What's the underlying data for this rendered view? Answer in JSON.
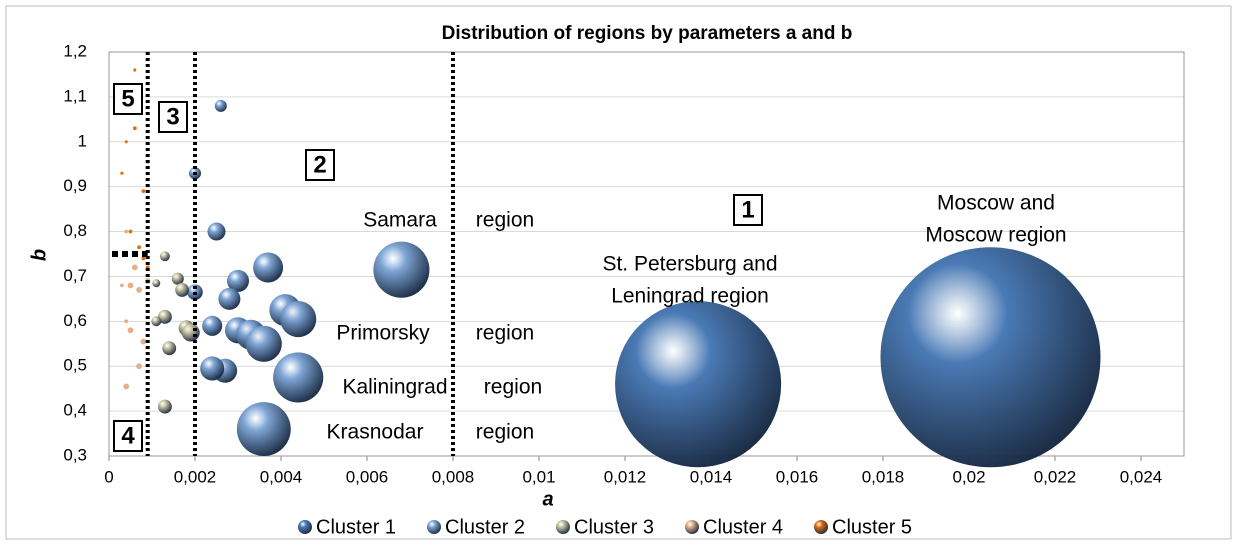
{
  "chart_data": {
    "type": "bubble",
    "title": "Distribution of regions by parameters a and b",
    "xlabel": "a",
    "ylabel": "b",
    "xlim": [
      0,
      0.025
    ],
    "xticks": [
      0,
      {
        "value": 0.002,
        "label": "0,002"
      },
      {
        "value": 0.004,
        "label": "0,004"
      },
      {
        "value": 0.006,
        "label": "0,006"
      },
      {
        "value": 0.008,
        "label": "0,008"
      },
      {
        "value": 0.01,
        "label": "0,01"
      },
      {
        "value": 0.012,
        "label": "0,012"
      },
      {
        "value": 0.014,
        "label": "0,014"
      },
      {
        "value": 0.016,
        "label": "0,016"
      },
      {
        "value": 0.018,
        "label": "0,018"
      },
      {
        "value": 0.02,
        "label": "0,02"
      },
      {
        "value": 0.022,
        "label": "0,022"
      },
      {
        "value": 0.024,
        "label": "0,024"
      }
    ],
    "ylim": [
      0.3,
      1.2
    ],
    "yticks": [
      {
        "value": 0.3,
        "label": "0,3"
      },
      {
        "value": 0.4,
        "label": "0,4"
      },
      {
        "value": 0.5,
        "label": "0,5"
      },
      {
        "value": 0.6,
        "label": "0,6"
      },
      {
        "value": 0.7,
        "label": "0,7"
      },
      {
        "value": 0.8,
        "label": "0,8"
      },
      {
        "value": 0.9,
        "label": "0,9"
      },
      1,
      {
        "value": 1.1,
        "label": "1,1"
      },
      {
        "value": 1.2,
        "label": "1,2"
      }
    ],
    "grid": true,
    "vlines": [
      0.0009,
      0.002,
      0.008
    ],
    "hline": 0.75,
    "series": [
      {
        "name": "Cluster 1",
        "color": "#4a7ab5",
        "x": [
          0.0205,
          0.0137
        ],
        "values": [
          0.52,
          0.46
        ],
        "sizes": [
          100,
          57
        ]
      },
      {
        "name": "Cluster 2",
        "color": "#7fa6d6",
        "x": [
          0.0068,
          0.0026,
          0.002,
          0.0025,
          0.0037,
          0.003,
          0.002,
          0.0028,
          0.0041,
          0.0044,
          0.0024,
          0.003,
          0.0033,
          0.0036,
          0.0027,
          0.0024,
          0.0044,
          0.0036
        ],
        "values": [
          0.715,
          1.08,
          0.93,
          0.8,
          0.72,
          0.69,
          0.665,
          0.65,
          0.625,
          0.605,
          0.59,
          0.58,
          0.57,
          0.55,
          0.49,
          0.495,
          0.475,
          0.36
        ],
        "sizes": [
          6.5,
          0.3,
          0.3,
          0.67,
          1.86,
          1,
          0.5,
          1,
          2.1,
          2.7,
          0.83,
          1.4,
          1.86,
          2.7,
          1.2,
          1.2,
          5.2,
          6
        ]
      },
      {
        "name": "Cluster 3",
        "color": "#c9c4a2",
        "x": [
          0.0013,
          0.0016,
          0.0017,
          0.0011,
          0.0009,
          0.0013,
          0.0018,
          0.0019,
          0.0011,
          0.0014,
          0.0013,
          0.0009
        ],
        "values": [
          0.745,
          0.695,
          0.67,
          0.685,
          0.69,
          0.61,
          0.585,
          0.575,
          0.6,
          0.54,
          0.41,
          0.955
        ],
        "sizes": [
          0.2,
          0.3,
          0.4,
          0.13,
          0.07,
          0.4,
          0.5,
          0.67,
          0.2,
          0.4,
          0.4,
          0.03
        ]
      },
      {
        "name": "Cluster 4",
        "color": "#e2b08a",
        "x": [
          0.0004,
          0.0006,
          0.0005,
          0.0007,
          0.0004,
          0.0005,
          0.0008,
          0.0007,
          0.0004,
          0.0003
        ],
        "values": [
          0.8,
          0.72,
          0.68,
          0.67,
          0.6,
          0.58,
          0.555,
          0.5,
          0.455,
          0.68
        ],
        "sizes": [
          0.03,
          0.07,
          0.07,
          0.07,
          0.03,
          0.07,
          0.07,
          0.07,
          0.07,
          0.03
        ]
      },
      {
        "name": "Cluster 5",
        "color": "#e46c0a",
        "x": [
          0.0006,
          0.0006,
          0.0004,
          0.0003,
          0.0008,
          0.0005,
          0.0007,
          0.0008,
          0.0009
        ],
        "values": [
          1.16,
          1.03,
          1.0,
          0.93,
          0.89,
          0.8,
          0.765,
          0.74,
          0.72
        ],
        "sizes": [
          0.02,
          0.03,
          0.02,
          0.02,
          0.03,
          0.03,
          0.03,
          0.03,
          0.03
        ]
      }
    ],
    "annotations": [
      "Samara",
      "region",
      "Primorsky",
      "region",
      "Kaliningrad",
      "region",
      "Krasnodar",
      "region",
      "St. Petersburg and",
      "Leningrad region",
      "Moscow and",
      "Moscow region"
    ],
    "zone_labels": [
      "1",
      "2",
      "3",
      "4",
      "5"
    ]
  }
}
